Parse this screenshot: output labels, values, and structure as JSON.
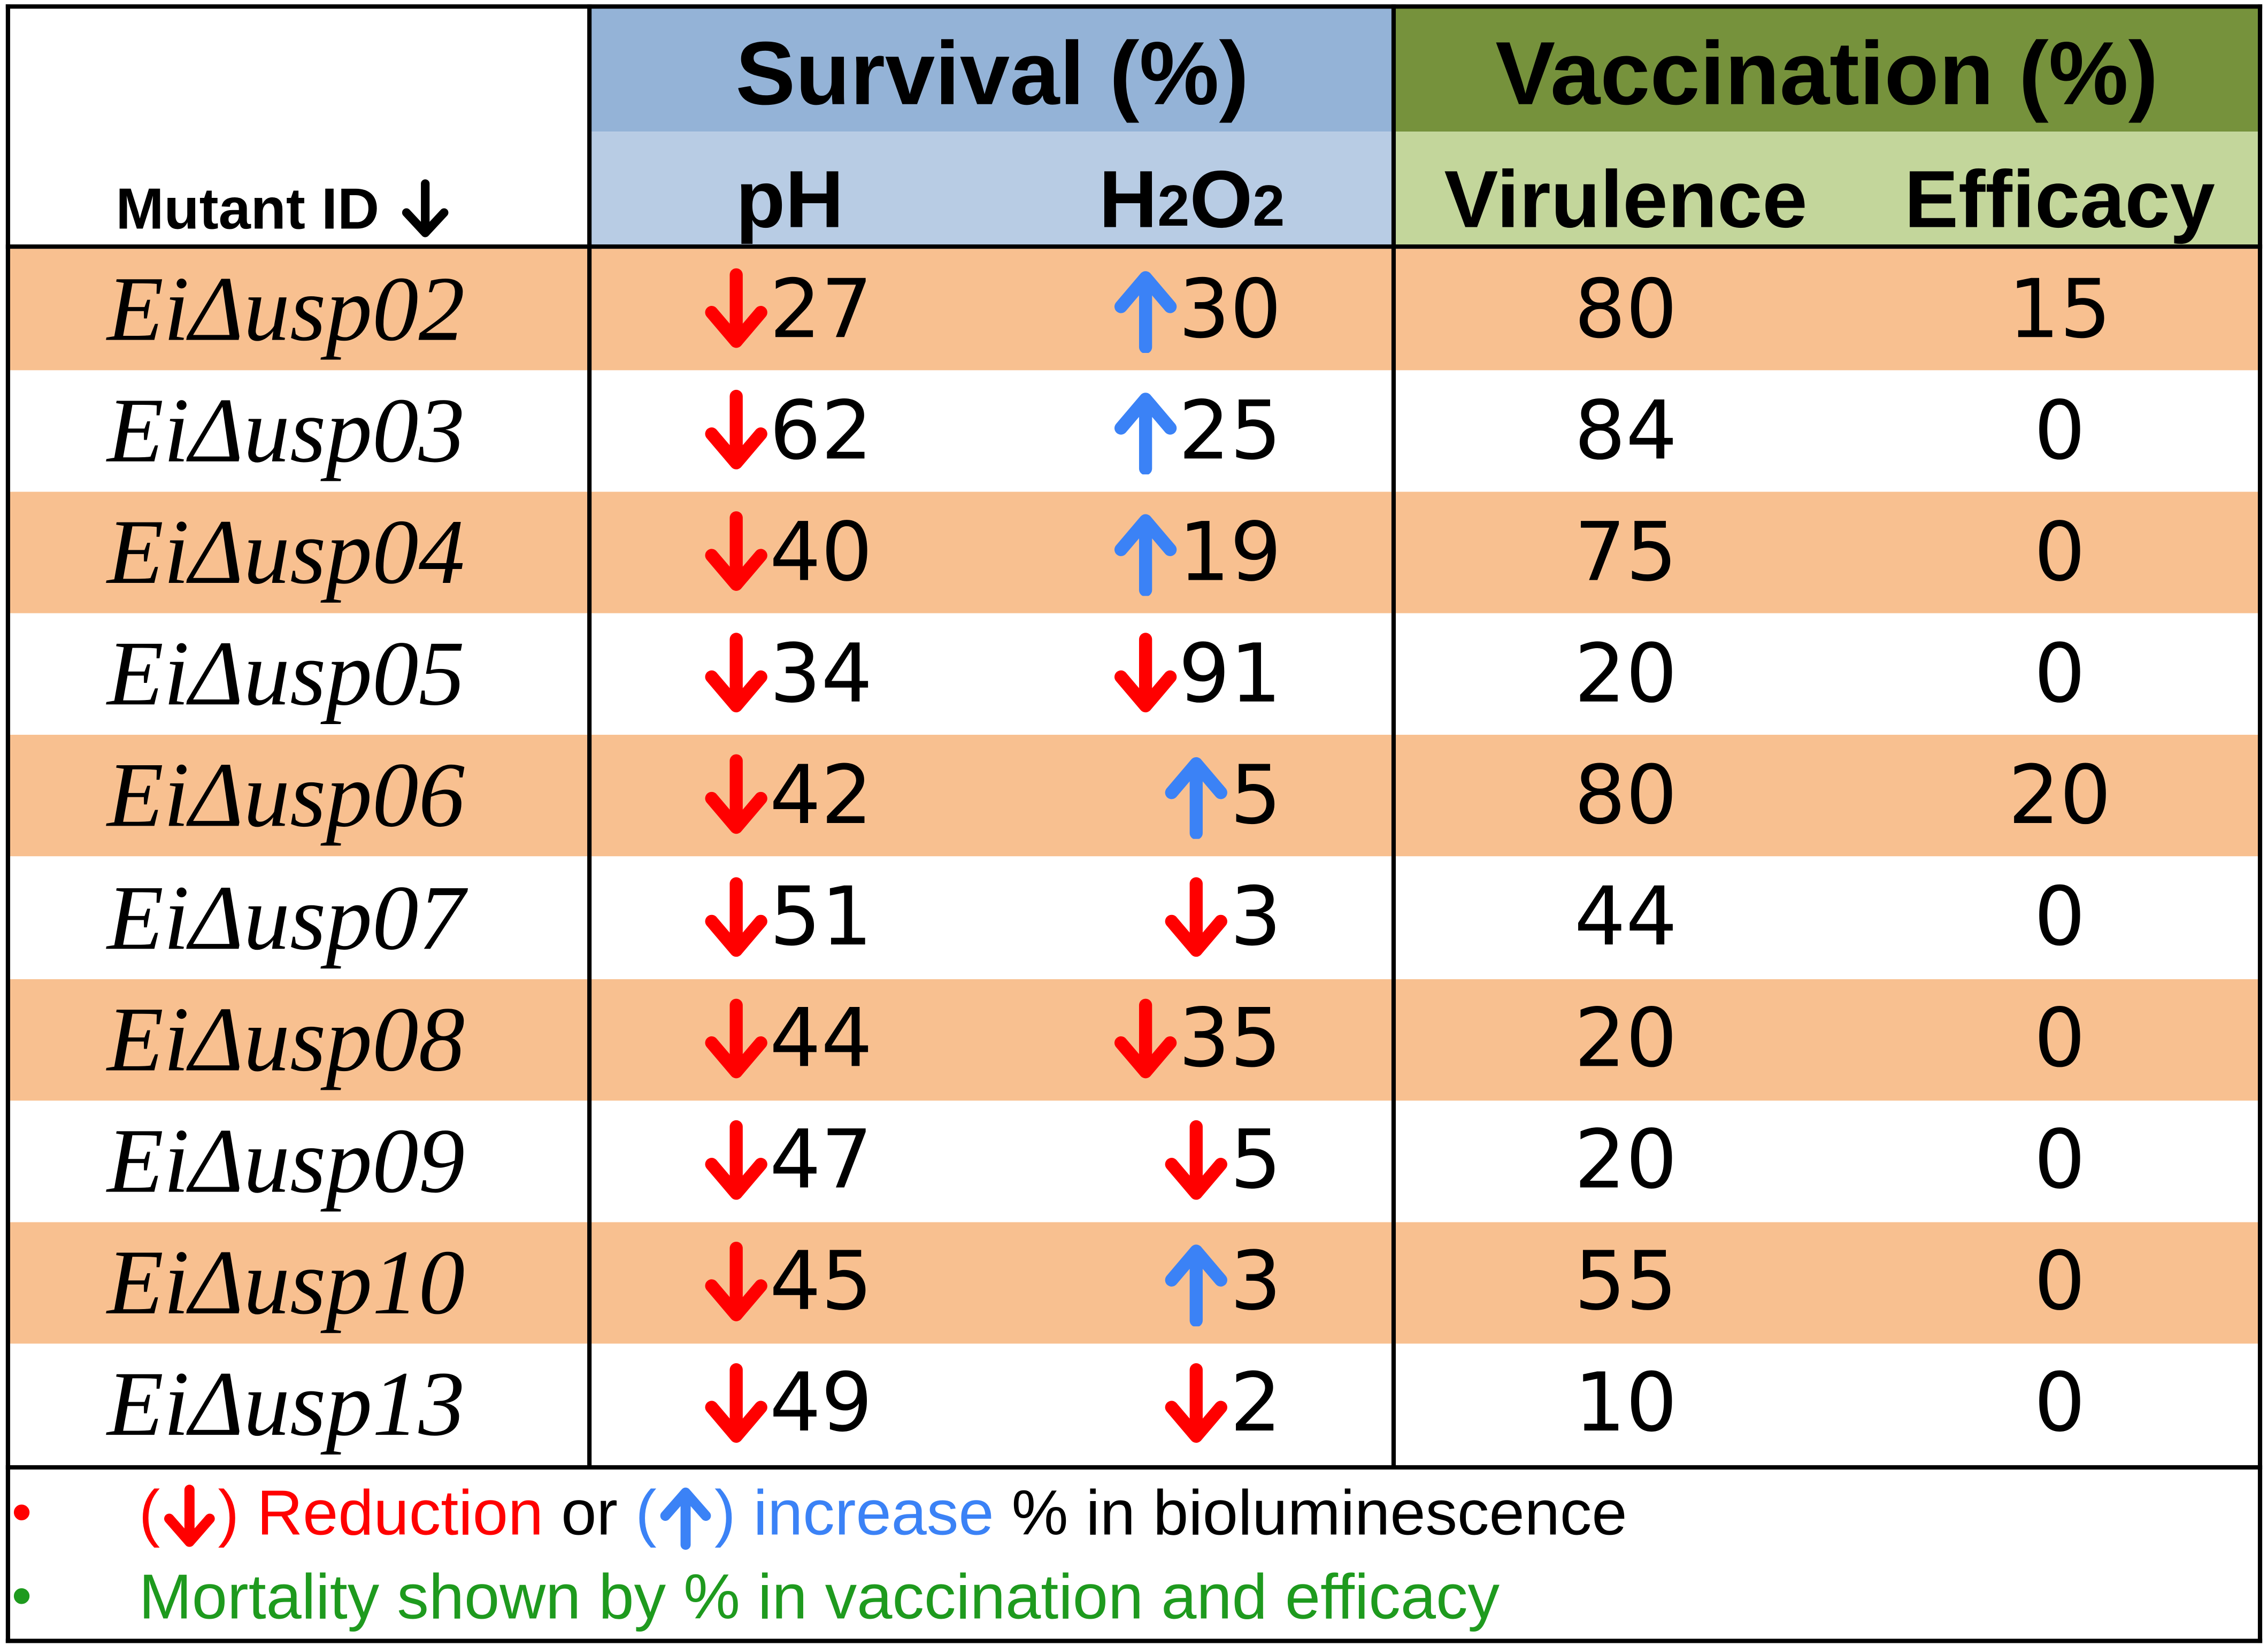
{
  "header": {
    "mutant_id_label": "Mutant ID",
    "survival_title": "Survival (%)",
    "vaccination_title": "Vaccination (%)",
    "ph_label": "pH",
    "h2o2_label": "H",
    "h2o2_sub1": "2",
    "h2o2_mid": "O",
    "h2o2_sub2": "2",
    "virulence_label": "Virulence",
    "efficacy_label": "Efficacy"
  },
  "colors": {
    "survival_header_top": "#94b3d7",
    "survival_header_sub": "#b8cce4",
    "vaccination_header_top": "#76923c",
    "vaccination_header_sub": "#c3d69b",
    "row_band": "#f8c090",
    "down_arrow": "#ff0000",
    "up_arrow": "#3b82f6"
  },
  "rows": [
    {
      "mutant": "EiΔusp02",
      "ph_dir": "down",
      "ph": "27",
      "h2o2_dir": "up",
      "h2o2": "30",
      "virulence": "80",
      "efficacy": "15"
    },
    {
      "mutant": "EiΔusp03",
      "ph_dir": "down",
      "ph": "62",
      "h2o2_dir": "up",
      "h2o2": "25",
      "virulence": "84",
      "efficacy": "0"
    },
    {
      "mutant": "EiΔusp04",
      "ph_dir": "down",
      "ph": "40",
      "h2o2_dir": "up",
      "h2o2": "19",
      "virulence": "75",
      "efficacy": "0"
    },
    {
      "mutant": "EiΔusp05",
      "ph_dir": "down",
      "ph": "34",
      "h2o2_dir": "down",
      "h2o2": "91",
      "virulence": "20",
      "efficacy": "0"
    },
    {
      "mutant": "EiΔusp06",
      "ph_dir": "down",
      "ph": "42",
      "h2o2_dir": "up",
      "h2o2": "5",
      "virulence": "80",
      "efficacy": "20"
    },
    {
      "mutant": "EiΔusp07",
      "ph_dir": "down",
      "ph": "51",
      "h2o2_dir": "down",
      "h2o2": "3",
      "virulence": "44",
      "efficacy": "0"
    },
    {
      "mutant": "EiΔusp08",
      "ph_dir": "down",
      "ph": "44",
      "h2o2_dir": "down",
      "h2o2": "35",
      "virulence": "20",
      "efficacy": "0"
    },
    {
      "mutant": "EiΔusp09",
      "ph_dir": "down",
      "ph": "47",
      "h2o2_dir": "down",
      "h2o2": "5",
      "virulence": "20",
      "efficacy": "0"
    },
    {
      "mutant": "EiΔusp10",
      "ph_dir": "down",
      "ph": "45",
      "h2o2_dir": "up",
      "h2o2": "3",
      "virulence": "55",
      "efficacy": "0"
    },
    {
      "mutant": "EiΔusp13",
      "ph_dir": "down",
      "ph": "49",
      "h2o2_dir": "down",
      "h2o2": "2",
      "virulence": "10",
      "efficacy": "0"
    }
  ],
  "legend": {
    "bullet": "•",
    "line1_open_paren": "(",
    "line1_close_paren": ")",
    "line1_reduction": "Reduction",
    "line1_or": "or",
    "line1_increase": "increase",
    "line1_rest": "% in bioluminescence",
    "line2": "Mortality shown by % in vaccination and efficacy"
  }
}
